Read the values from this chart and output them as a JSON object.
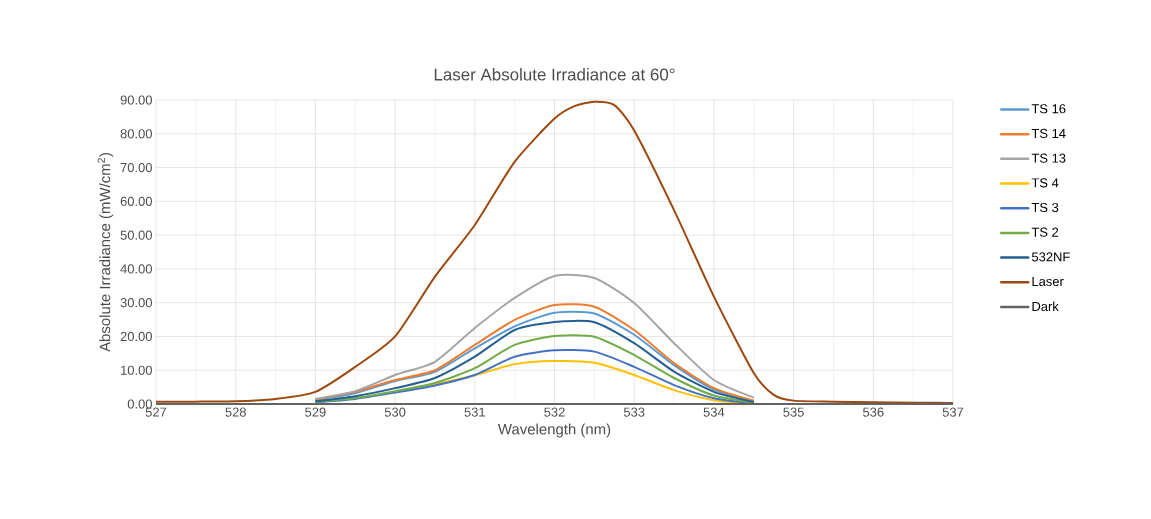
{
  "chart_data": {
    "type": "line",
    "title": "Laser Absolute Irradiance at 60°",
    "xlabel": "Wavelength (nm)",
    "ylabel": "Absolute Irradiance (mW/cm$^{2}$)",
    "x": [
      527,
      527.5,
      528,
      528.5,
      529,
      529.5,
      530,
      530.5,
      531,
      531.5,
      532,
      532.5,
      533,
      533.5,
      534,
      534.5,
      535,
      535.5,
      536,
      536.5,
      537
    ],
    "series": [
      {
        "name": "TS 16",
        "color": "#5b9bd5",
        "values": [
          null,
          null,
          null,
          null,
          1.2,
          3.2,
          6.8,
          9.5,
          16.5,
          23,
          27,
          26.8,
          20.5,
          11.5,
          4.3,
          0.9,
          null,
          null,
          null,
          null,
          null
        ]
      },
      {
        "name": "TS 14",
        "color": "#ed7d31",
        "values": [
          null,
          null,
          null,
          null,
          1.3,
          3.6,
          7.1,
          10,
          17.5,
          24.9,
          29.3,
          28.8,
          21.9,
          12.1,
          4.7,
          1,
          null,
          null,
          null,
          null,
          null
        ]
      },
      {
        "name": "TS 13",
        "color": "#a5a5a5",
        "values": [
          null,
          null,
          null,
          null,
          1.5,
          3.8,
          8.6,
          12.5,
          22.5,
          31.4,
          37.9,
          37.3,
          29.9,
          18,
          7.1,
          1.9,
          null,
          null,
          null,
          null,
          null
        ]
      },
      {
        "name": "TS 4",
        "color": "#ffc000",
        "values": [
          null,
          null,
          null,
          null,
          null,
          null,
          3.5,
          5.8,
          8.5,
          11.8,
          12.7,
          12.2,
          8.6,
          4.1,
          1.1,
          0.1,
          null,
          null,
          null,
          null,
          null
        ]
      },
      {
        "name": "TS 3",
        "color": "#4472c4",
        "values": [
          null,
          null,
          null,
          null,
          0.5,
          1.5,
          3.4,
          5.5,
          8.6,
          14,
          15.9,
          15.5,
          11,
          5.6,
          1.7,
          0.2,
          null,
          null,
          null,
          null,
          null
        ]
      },
      {
        "name": "TS 2",
        "color": "#70ad47",
        "values": [
          null,
          null,
          null,
          null,
          0.6,
          1.8,
          3.8,
          6.2,
          10.6,
          17.5,
          20.1,
          19.9,
          14.5,
          7.7,
          2.5,
          0.4,
          null,
          null,
          null,
          null,
          null
        ]
      },
      {
        "name": "532NF",
        "color": "#255e91",
        "values": [
          null,
          null,
          null,
          null,
          0.8,
          2.3,
          4.7,
          7.7,
          14,
          21.9,
          24.3,
          24.2,
          18,
          9.6,
          3.6,
          0.6,
          null,
          null,
          null,
          null,
          null
        ]
      },
      {
        "name": "Laser",
        "color": "#9e480e",
        "x": [
          527,
          527.5,
          528,
          528.5,
          529,
          529.5,
          530,
          530.5,
          531,
          531.5,
          532,
          532.25,
          532.5,
          532.75,
          533,
          533.5,
          534,
          534.5,
          534.75,
          535,
          535.5,
          536,
          536.5,
          537
        ],
        "values": [
          0.7,
          0.7,
          0.8,
          1.5,
          3.6,
          11,
          20,
          37.7,
          53,
          71.7,
          84.5,
          88.2,
          89.5,
          88.5,
          81,
          57.4,
          31.8,
          9.2,
          2.7,
          1,
          0.7,
          0.5,
          0.4,
          0.3
        ]
      },
      {
        "name": "Dark",
        "color": "#636363",
        "values": [
          0,
          0,
          0,
          0,
          0,
          0,
          0,
          0,
          0,
          0,
          0,
          0,
          0,
          0,
          0,
          0,
          0,
          0,
          0,
          0,
          0
        ]
      }
    ],
    "xlim": [
      527,
      537
    ],
    "ylim": [
      0,
      90
    ],
    "xticks": [
      527,
      528,
      529,
      530,
      531,
      532,
      533,
      534,
      535,
      536,
      537
    ],
    "yticks": [
      {
        "value": 0,
        "label": "0.00"
      },
      {
        "value": 10,
        "label": "10.00"
      },
      {
        "value": 20,
        "label": "20.00"
      },
      {
        "value": 30,
        "label": "30.00"
      },
      {
        "value": 40,
        "label": "40.00"
      },
      {
        "value": 50,
        "label": "50.00"
      },
      {
        "value": 60,
        "label": "60.00"
      },
      {
        "value": 70,
        "label": "70.00"
      },
      {
        "value": 80,
        "label": "80.00"
      },
      {
        "value": 90,
        "label": "90.00"
      }
    ],
    "grid": true,
    "legend": "right",
    "marker": "none",
    "line_style": "solid"
  }
}
